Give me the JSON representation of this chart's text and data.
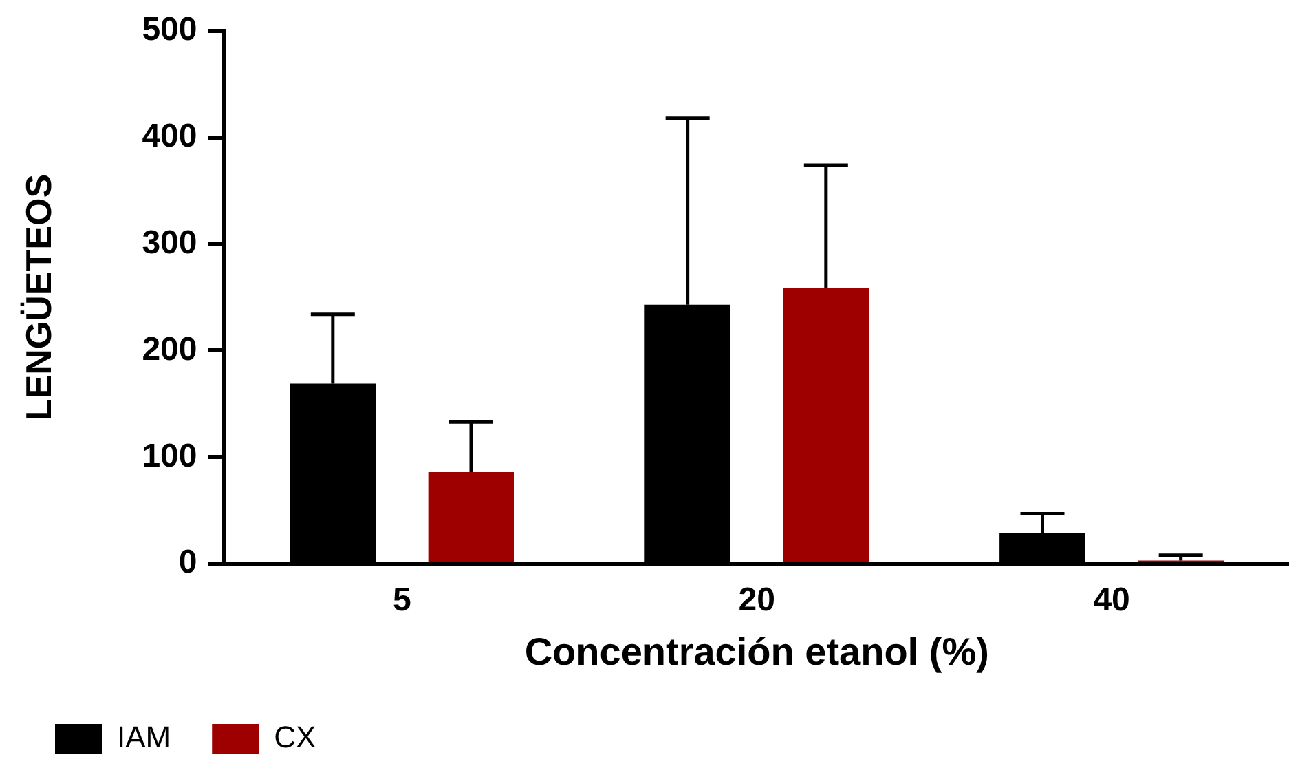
{
  "chart_data": {
    "type": "bar",
    "xlabel": "Concentración etanol (%)",
    "ylabel": "LENGÜETEOS",
    "categories": [
      "5",
      "20",
      "40"
    ],
    "series": [
      {
        "name": "IAM",
        "color": "#000000",
        "values": [
          169,
          243,
          29
        ],
        "errors": [
          [
            169,
            234
          ],
          [
            243,
            418
          ],
          [
            29,
            47
          ]
        ]
      },
      {
        "name": "CX",
        "color": "#9e0000",
        "values": [
          86,
          259,
          3
        ],
        "errors": [
          [
            86,
            133
          ],
          [
            259,
            374
          ],
          [
            3,
            8
          ]
        ]
      }
    ],
    "ylim": [
      0,
      500
    ],
    "yticks": [
      0,
      100,
      200,
      300,
      400,
      500
    ],
    "grid": false,
    "legend": "bottom left"
  }
}
